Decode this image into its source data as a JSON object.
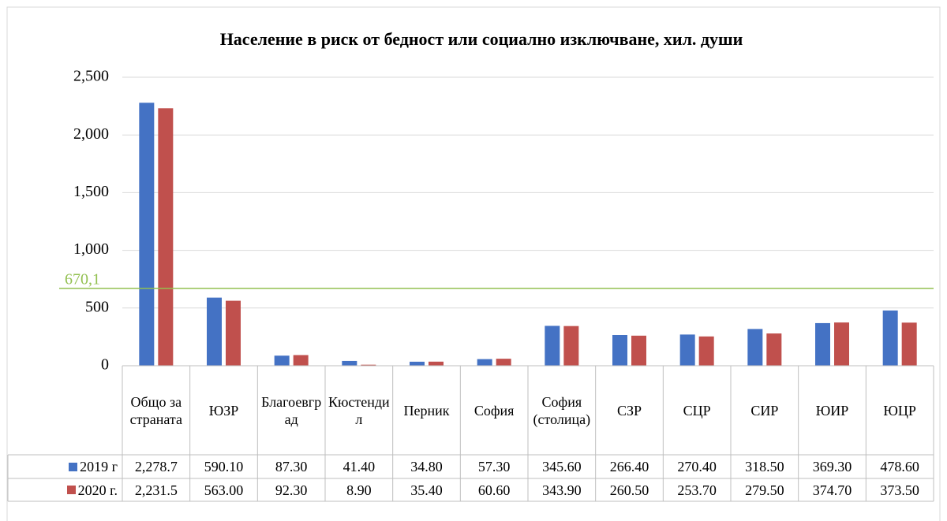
{
  "chart_data": {
    "type": "bar",
    "title": "Население в риск от бедност или социално изключване, хил. души",
    "categories": [
      "Общо за страната",
      "ЮЗР",
      "Благоевград",
      "Кюстендил",
      "Перник",
      "София",
      "София (столица)",
      "СЗР",
      "СЦР",
      "СИР",
      "ЮИР",
      "ЮЦР"
    ],
    "series": [
      {
        "name": "2019 г",
        "color": "#4472c4",
        "values": [
          2278.7,
          590.1,
          87.3,
          41.4,
          34.8,
          57.3,
          345.6,
          266.4,
          270.4,
          318.5,
          369.3,
          478.6
        ],
        "value_labels": [
          "2,278.7",
          "590.10",
          "87.30",
          "41.40",
          "34.80",
          "57.30",
          "345.60",
          "266.40",
          "270.40",
          "318.50",
          "369.30",
          "478.60"
        ]
      },
      {
        "name": "2020 г.",
        "color": "#c0504d",
        "values": [
          2231.5,
          563.0,
          92.3,
          8.9,
          35.4,
          60.6,
          343.9,
          260.5,
          253.7,
          279.5,
          374.7,
          373.5
        ],
        "value_labels": [
          "2,231.5",
          "563.00",
          "92.30",
          "8.90",
          "35.40",
          "60.60",
          "343.90",
          "260.50",
          "253.70",
          "279.50",
          "374.70",
          "373.50"
        ]
      }
    ],
    "ylim": [
      0,
      2500
    ],
    "yticks": [
      0,
      500,
      {
        "value": 1000,
        "label": "1,000"
      },
      {
        "value": 1500,
        "label": "1,500"
      },
      {
        "value": 2000,
        "label": "2,000"
      },
      {
        "value": 2500,
        "label": "2,500"
      }
    ],
    "grid": true,
    "reference_line": {
      "value": 670.1,
      "label": "670,1",
      "color": "#92c050"
    }
  }
}
